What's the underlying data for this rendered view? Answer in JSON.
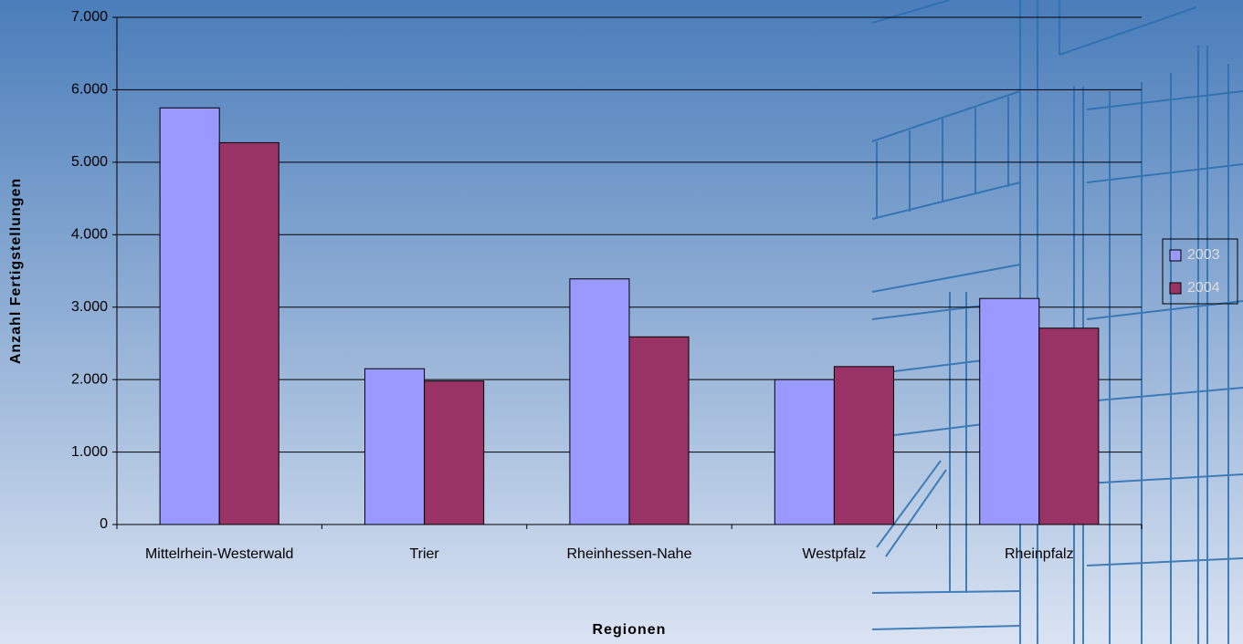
{
  "chart_data": {
    "type": "bar",
    "x_label": "Regionen",
    "y_label": "Anzahl Fertigstellungen",
    "categories": [
      "Mittelrhein-Westerwald",
      "Trier",
      "Rheinhessen-Nahe",
      "Westpfalz",
      "Rheinpfalz"
    ],
    "series": [
      {
        "name": "2003",
        "color": "#9999ff",
        "values": [
          5750,
          2150,
          3390,
          2000,
          3120
        ]
      },
      {
        "name": "2004",
        "color": "#993366",
        "values": [
          5270,
          1980,
          2590,
          2180,
          2710
        ]
      }
    ],
    "ylim": [
      0,
      7000
    ],
    "yticks": [
      0,
      {
        "value": 1000,
        "label": "1.000"
      },
      {
        "value": 2000,
        "label": "2.000"
      },
      {
        "value": 3000,
        "label": "3.000"
      },
      {
        "value": 4000,
        "label": "4.000"
      },
      {
        "value": 5000,
        "label": "5.000"
      },
      {
        "value": 6000,
        "label": "6.000"
      },
      {
        "value": 7000,
        "label": "7.000"
      }
    ],
    "grid": true,
    "legend": "right"
  }
}
